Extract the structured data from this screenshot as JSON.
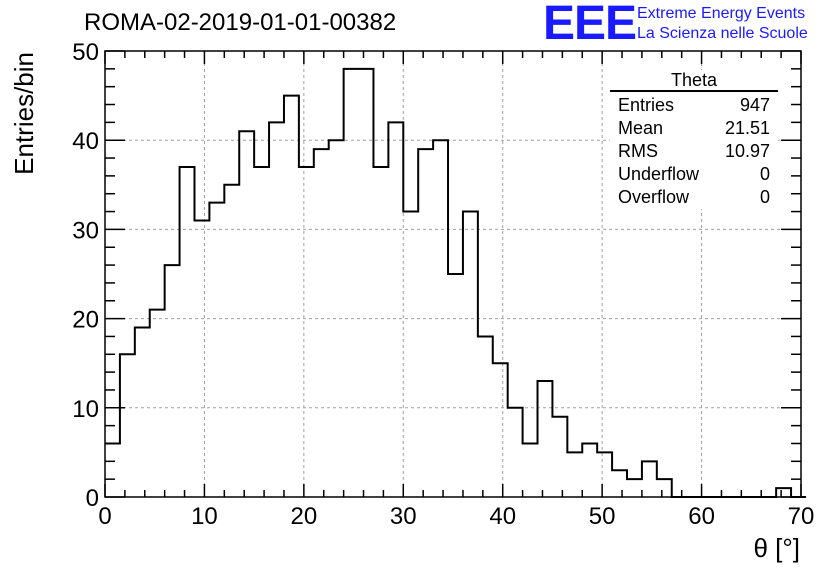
{
  "header": {
    "run_title": "ROMA-02-2019-01-01-00382",
    "logo_text": "EEE",
    "logo_line1": "Extreme Energy Events",
    "logo_line2": "La Scienza nelle Scuole",
    "logo_color": "#1a1aff"
  },
  "stats": {
    "title": "Theta",
    "rows": [
      {
        "label": "Entries",
        "value": "947"
      },
      {
        "label": "Mean",
        "value": "21.51"
      },
      {
        "label": "RMS",
        "value": "10.97"
      },
      {
        "label": "Underflow",
        "value": "0"
      },
      {
        "label": "Overflow",
        "value": "0"
      }
    ]
  },
  "chart_data": {
    "type": "histogram",
    "title": "ROMA-02-2019-01-01-00382",
    "xlabel": "θ [°]",
    "ylabel": "Entries/bin",
    "xlim": [
      0,
      70
    ],
    "ylim": [
      0,
      50
    ],
    "grid": true,
    "bin_width": 1.5,
    "bin_edges_start": 0,
    "values": [
      6,
      16,
      19,
      21,
      26,
      37,
      31,
      33,
      35,
      41,
      37,
      42,
      45,
      37,
      39,
      40,
      48,
      48,
      37,
      42,
      32,
      39,
      40,
      25,
      32,
      18,
      15,
      10,
      6,
      13,
      9,
      5,
      6,
      5,
      3,
      2,
      4,
      2,
      0,
      0,
      0,
      0,
      0,
      0,
      0,
      1,
      0
    ],
    "x_ticks": [
      "0",
      "10",
      "20",
      "30",
      "40",
      "50",
      "60",
      "70"
    ],
    "y_ticks": [
      "0",
      "10",
      "20",
      "30",
      "40",
      "50"
    ],
    "line_color": "#000000",
    "grid_color": "#a0a0a0"
  }
}
